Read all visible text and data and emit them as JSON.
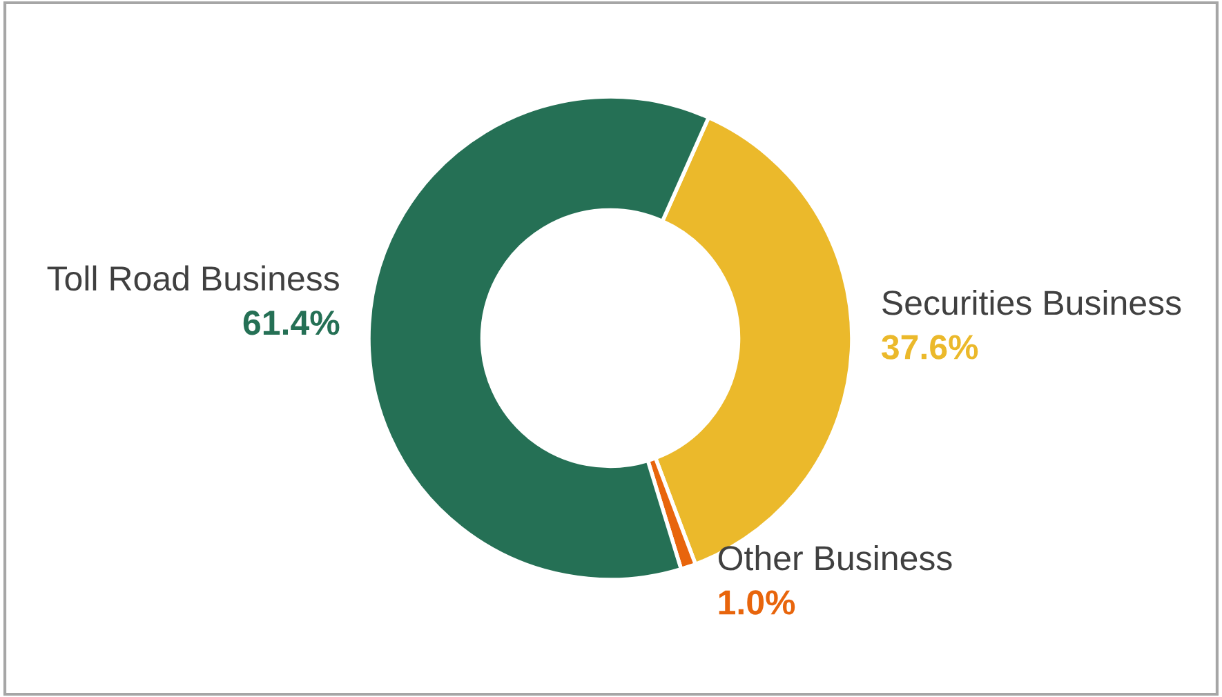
{
  "chart_data": {
    "type": "donut",
    "categories": [
      "Securities Business",
      "Other Business",
      "Toll Road Business"
    ],
    "values": [
      37.6,
      1.0,
      61.4
    ],
    "value_labels": [
      "37.6%",
      "1.0%",
      "61.4%"
    ],
    "colors": [
      "#ebb92b",
      "#e8650c",
      "#257055"
    ],
    "legend": false
  }
}
